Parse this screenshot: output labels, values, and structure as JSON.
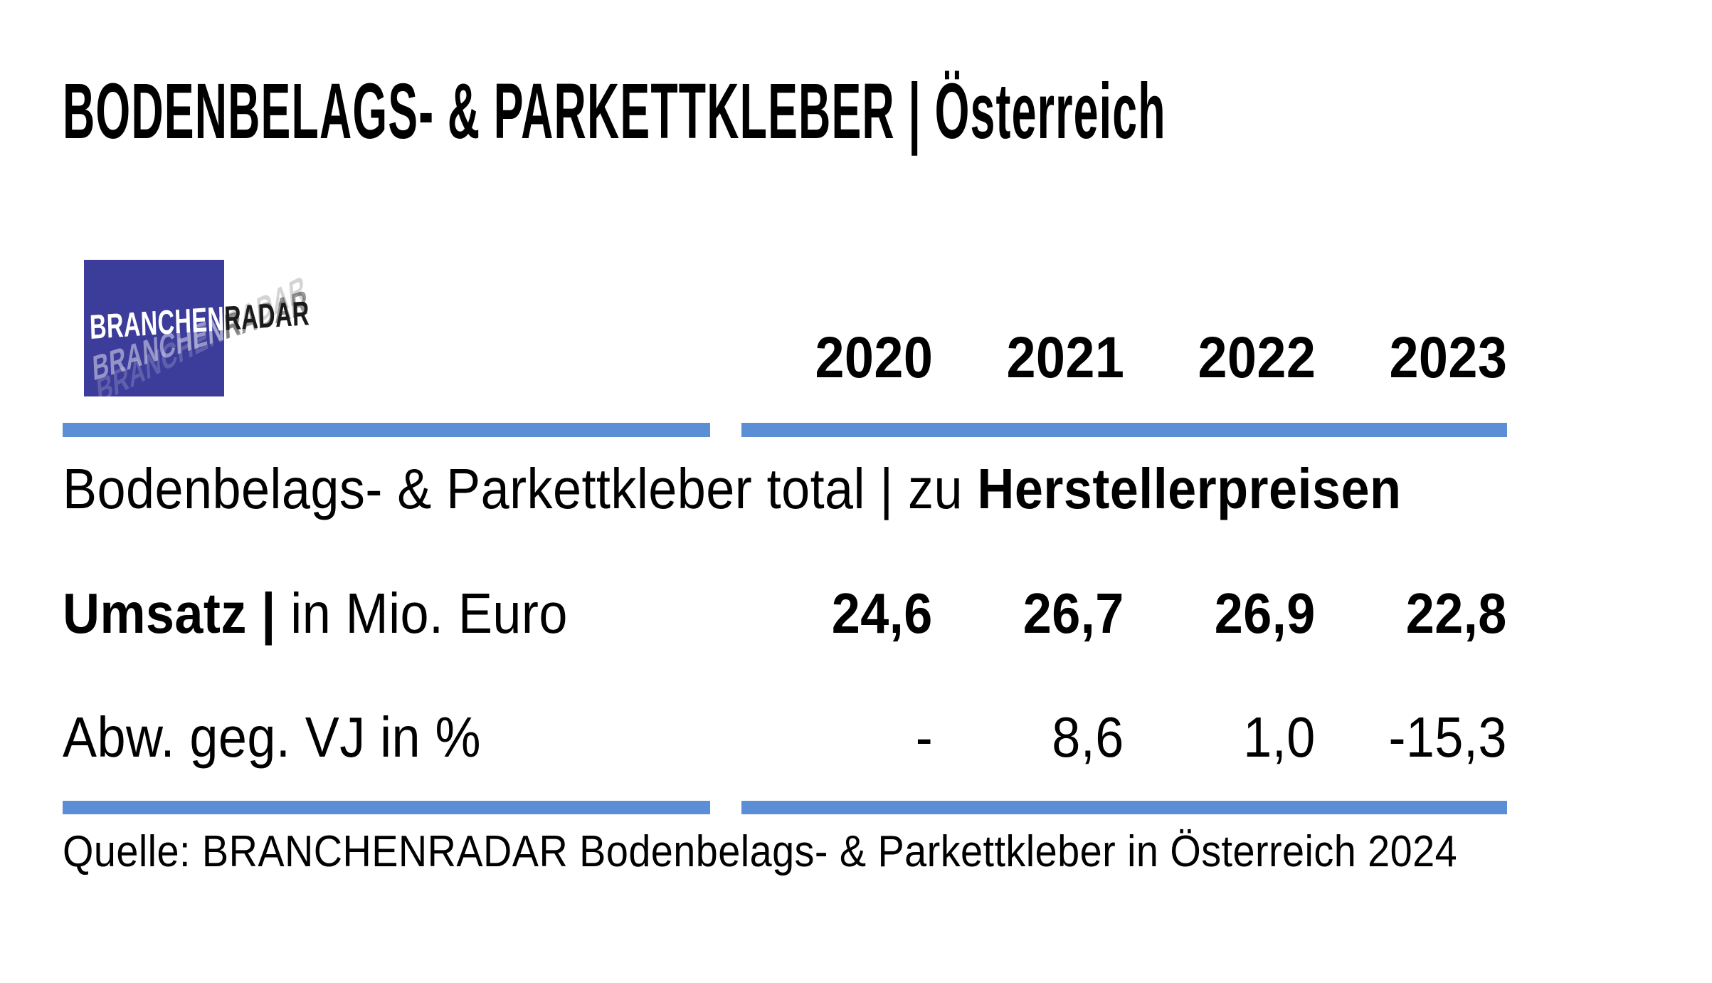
{
  "title": "BODENBELAGS- & PARKETTKLEBER | Österreich",
  "logo": {
    "text_primary": "BRANCHEN",
    "text_secondary": "RADAR"
  },
  "colors": {
    "divider_bar": "#5b8ed5",
    "logo_square": "#3c3c9b",
    "logo_text_primary": "#ffffff",
    "logo_text_secondary": "#1a1a1a",
    "text": "#000000",
    "background": "#ffffff"
  },
  "table": {
    "years": [
      "2020",
      "2021",
      "2022",
      "2023"
    ],
    "section": {
      "regular": "Bodenbelags- & Parkettkleber total | zu ",
      "bold": "Herstellerpreisen"
    },
    "rows": [
      {
        "label_bold": "Umsatz |",
        "label_rest": " in Mio. Euro",
        "values": [
          "24,6",
          "26,7",
          "26,9",
          "22,8"
        ]
      },
      {
        "label_bold": "",
        "label_rest": "Abw. geg. VJ in %",
        "values": [
          "-",
          "8,6",
          "1,0",
          "-15,3"
        ]
      }
    ]
  },
  "source": "Quelle: BRANCHENRADAR Bodenbelags- & Parkettkleber in Österreich 2024",
  "chart_data": {
    "type": "table",
    "title": "BODENBELAGS- & PARKETTKLEBER | Österreich",
    "section": "Bodenbelags- & Parkettkleber total | zu Herstellerpreisen",
    "categories": [
      "2020",
      "2021",
      "2022",
      "2023"
    ],
    "series": [
      {
        "name": "Umsatz | in Mio. Euro",
        "values": [
          24.6,
          26.7,
          26.9,
          22.8
        ]
      },
      {
        "name": "Abw. geg. VJ in %",
        "values": [
          null,
          8.6,
          1.0,
          -15.3
        ]
      }
    ],
    "source": "Quelle: BRANCHENRADAR Bodenbelags- & Parkettkleber in Österreich 2024"
  }
}
